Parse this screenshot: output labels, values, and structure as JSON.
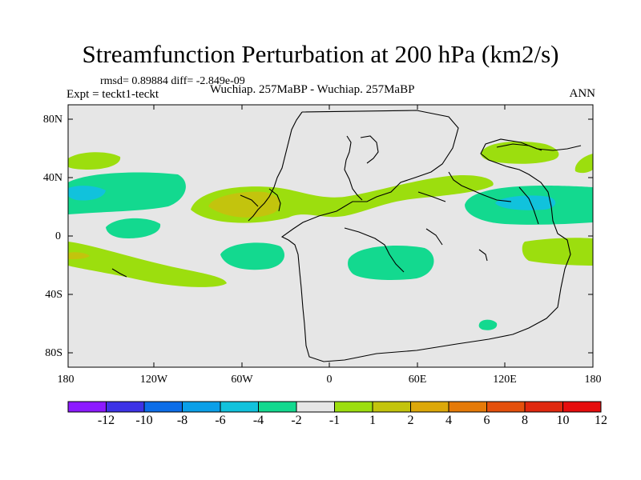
{
  "title": "Streamfunction Perturbation at 200 hPa (km2/s)",
  "stats": "rmsd= 0.89884 diff= -2.849e-09",
  "expt": "Expt = teckt1-teckt",
  "center_label": "Wuchiap. 257MaBP - Wuchiap. 257MaBP",
  "season": "ANN",
  "lat_labels": [
    "80N",
    "40N",
    "0",
    "40S",
    "80S"
  ],
  "lon_labels": [
    "180",
    "120W",
    "60W",
    "0",
    "60E",
    "120E",
    "180"
  ],
  "colorbar": {
    "labels": [
      "-12",
      "-10",
      "-8",
      "-6",
      "-4",
      "-2",
      "-1",
      "1",
      "2",
      "4",
      "6",
      "8",
      "10",
      "12"
    ],
    "colors": [
      "#8c1aff",
      "#3d33e6",
      "#0d6de8",
      "#0b9fe8",
      "#11c2dc",
      "#13d98f",
      "#e6e6e6",
      "#9cde0e",
      "#c3c40d",
      "#dca80a",
      "#e57a08",
      "#e4500c",
      "#e0280e",
      "#e60d0d"
    ]
  },
  "palette": {
    "background": "#e6e6e6",
    "green": "#13d98f",
    "cyan": "#11c2dc",
    "lime": "#9cde0e",
    "olive": "#c3c40d",
    "orange": "#dca80a"
  }
}
